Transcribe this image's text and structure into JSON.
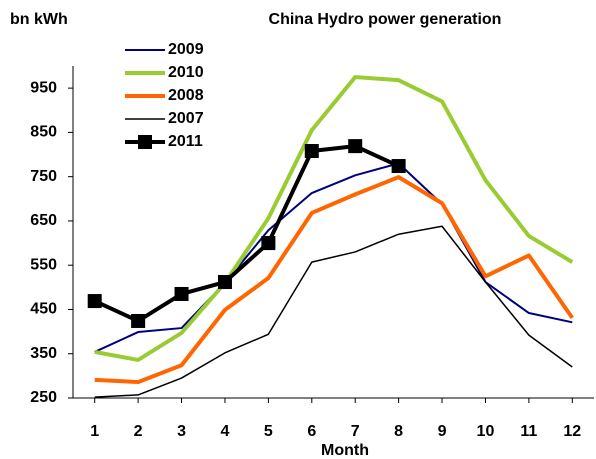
{
  "chart_data": {
    "type": "line",
    "title": "China Hydro power generation",
    "y_label": "bn kWh",
    "x_label": "Month",
    "x": [
      1,
      2,
      3,
      4,
      5,
      6,
      7,
      8,
      9,
      10,
      11,
      12
    ],
    "xlim": [
      0.5,
      12.5
    ],
    "xticks": [
      1,
      2,
      3,
      4,
      5,
      6,
      7,
      8,
      9,
      10,
      11,
      12
    ],
    "ylim": [
      250,
      1000
    ],
    "yticks": [
      250,
      350,
      450,
      550,
      650,
      750,
      850,
      950
    ],
    "grid": false,
    "series": [
      {
        "name": "2009",
        "color": "#000080",
        "width": 2,
        "marker": false,
        "values": [
          354,
          399,
          408,
          510,
          629,
          713,
          753,
          780,
          688,
          512,
          442,
          421
        ]
      },
      {
        "name": "2010",
        "color": "#99cc33",
        "width": 4,
        "marker": false,
        "values": [
          354,
          336,
          397,
          510,
          656,
          855,
          975,
          968,
          920,
          742,
          616,
          557
        ]
      },
      {
        "name": "2008",
        "color": "#ff6600",
        "width": 4,
        "marker": false,
        "values": [
          291,
          286,
          324,
          449,
          521,
          668,
          710,
          749,
          690,
          525,
          572,
          431
        ]
      },
      {
        "name": "2007",
        "color": "#000000",
        "width": 1.5,
        "marker": false,
        "values": [
          252,
          257,
          295,
          352,
          394,
          557,
          580,
          620,
          638,
          512,
          392,
          320
        ]
      },
      {
        "name": "2011",
        "color": "#000000",
        "width": 4,
        "marker": true,
        "values": [
          469,
          424,
          485,
          512,
          600,
          808,
          819,
          774,
          null,
          null,
          null,
          null
        ]
      }
    ]
  }
}
